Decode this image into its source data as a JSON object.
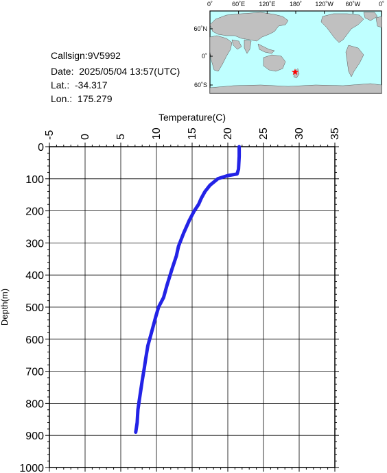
{
  "info": {
    "callsign": "Callsign:9V5992",
    "date": "Date:  2025/05/04 13:57(UTC)",
    "lat": "Lat.:  -34.317",
    "lon": "Lon.:  175.279"
  },
  "map": {
    "top_labels": [
      "0˚",
      "60˚E",
      "120˚E",
      "180˚",
      "120˚W",
      "60˚W",
      "0˚"
    ],
    "lat_labels": [
      "60˚N",
      "0˚",
      "60˚S"
    ],
    "ocean_color": "#bfffff",
    "land_color": "#c0c0c0",
    "marker_color": "#ff0000",
    "marker_icon": "star-icon"
  },
  "chart_data": {
    "type": "line",
    "title": "",
    "xlabel": "Temperature(C)",
    "ylabel": "Depth(m)",
    "xlim": [
      -5,
      35
    ],
    "ylim": [
      1000,
      0
    ],
    "x_ticks": [
      "-5",
      "0",
      "5",
      "10",
      "15",
      "20",
      "25",
      "30",
      "35"
    ],
    "y_ticks": [
      "0",
      "100",
      "200",
      "300",
      "400",
      "500",
      "600",
      "700",
      "800",
      "900",
      "1000"
    ],
    "grid": true,
    "line_color": "#2323e6",
    "series": [
      {
        "x": [
          21.6,
          21.6,
          21.5,
          21.3,
          20.0,
          18.6,
          17.5,
          16.8,
          16.3,
          15.9,
          15.3,
          14.6,
          13.8,
          13.1,
          12.8,
          12.2,
          11.5,
          11.0,
          10.3,
          9.9,
          9.3,
          8.8,
          8.5,
          8.3,
          8.0,
          7.8,
          7.6,
          7.4,
          7.3,
          7.1
        ],
        "y": [
          0,
          30,
          70,
          85,
          90,
          100,
          120,
          140,
          160,
          180,
          200,
          230,
          270,
          310,
          340,
          380,
          430,
          470,
          500,
          530,
          580,
          620,
          660,
          690,
          730,
          760,
          790,
          820,
          860,
          890
        ]
      }
    ]
  }
}
